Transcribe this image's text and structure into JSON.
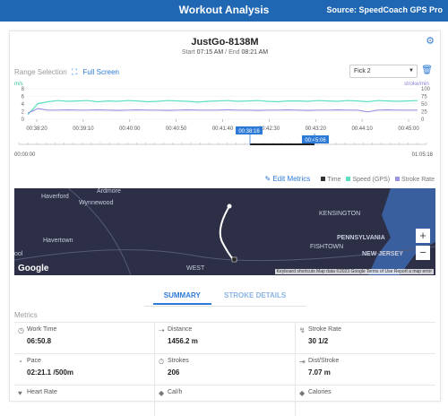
{
  "header": {
    "title": "Workout Analysis",
    "source": "Source: SpeedCoach GPS Pro"
  },
  "session": {
    "name": "JustGo-8138M",
    "start_label": "Start",
    "start_time": "07:15 AM",
    "end_label": "End",
    "end_time": "08:21 AM"
  },
  "range": {
    "label": "Range Selection",
    "fullscreen": "Full Screen",
    "select_value": "Fick 2",
    "range_start": "00:38:16",
    "range_end": "00:45:06",
    "timeline_start": "00:00:00",
    "timeline_end": "01:05:18"
  },
  "chart_data": {
    "type": "line",
    "left_axis_label": "m/s",
    "right_axis_label": "stroke/min",
    "left_ticks": [
      "0",
      "2",
      "4",
      "6",
      "8"
    ],
    "right_ticks": [
      "0",
      "25",
      "50",
      "75",
      "100"
    ],
    "x_ticks": [
      "00:38:20",
      "00:39:10",
      "00:40:00",
      "00:40:50",
      "00:41:40",
      "00:42:30",
      "00:43:20",
      "00:44:10",
      "00:45:00"
    ],
    "left_range": [
      0,
      8
    ],
    "right_range": [
      0,
      100
    ],
    "series": [
      {
        "name": "Speed (GPS)",
        "axis": "left",
        "color": "#5de0c0",
        "values": [
          1.2,
          4.1,
          4.6,
          4.9,
          4.7,
          4.8,
          4.9,
          4.6,
          4.8,
          4.7,
          4.9,
          4.8,
          4.6,
          4.7,
          4.9,
          4.8,
          4.7,
          4.5,
          4.7,
          4.8,
          4.9,
          4.7,
          4.8,
          4.9,
          4.7,
          4.6,
          4.8,
          4.8,
          4.7,
          4.9,
          4.8,
          4.7,
          4.9,
          4.8,
          4.6,
          4.9,
          4.8,
          4.7,
          4.8,
          4.9
        ]
      },
      {
        "name": "Stroke Rate",
        "axis": "right",
        "color": "#9b95e0",
        "values": [
          20,
          35,
          30,
          30,
          31,
          30,
          30,
          31,
          30,
          29,
          30,
          31,
          30,
          30,
          29,
          30,
          31,
          30,
          30,
          30,
          31,
          30,
          30,
          29,
          30,
          30,
          31,
          30,
          29,
          30,
          30,
          31,
          30,
          30,
          24,
          30,
          31,
          30,
          30,
          30
        ]
      }
    ]
  },
  "legend": {
    "edit": "Edit Metrics",
    "items": [
      {
        "label": "Time",
        "color": "#333333"
      },
      {
        "label": "Speed (GPS)",
        "color": "#5de0c0"
      },
      {
        "label": "Stroke Rate",
        "color": "#9b95e0"
      }
    ]
  },
  "map": {
    "labels": [
      "Haverford",
      "Ardmore",
      "Wynnewood",
      "Havertown",
      "KENSINGTON",
      "FISHTOWN",
      "PENNSYLVANIA",
      "NEW JERSEY",
      "WEST",
      "ool"
    ],
    "attribution": "Keyboard shortcuts   Map data ©2023 Google   Terms of Use   Report a map error",
    "google": "Google",
    "zoom_in": "+",
    "zoom_out": "−"
  },
  "tabs": [
    "SUMMARY",
    "STROKE DETAILS"
  ],
  "metrics_title": "Metrics",
  "metrics": [
    [
      {
        "icon": "clock-icon",
        "glyph": "◷",
        "label": "Work Time",
        "value": "06:50.8"
      },
      {
        "icon": "distance-icon",
        "glyph": "⇢",
        "label": "Distance",
        "value": "1456.2 m"
      },
      {
        "icon": "stroke-rate-icon",
        "glyph": "↯",
        "label": "Stroke Rate",
        "value": "30 1/2"
      }
    ],
    [
      {
        "icon": "pace-icon",
        "glyph": "◔",
        "label": "Pace",
        "value": "02:21.1 /500m"
      },
      {
        "icon": "strokes-icon",
        "glyph": "⏱",
        "label": "Strokes",
        "value": "206"
      },
      {
        "icon": "dist-stroke-icon",
        "glyph": "⇥",
        "label": "Dist/Stroke",
        "value": "7.07 m"
      }
    ],
    [
      {
        "icon": "heart-icon",
        "glyph": "♥",
        "label": "Heart Rate",
        "value": ""
      },
      {
        "icon": "cal-icon",
        "glyph": "◆",
        "label": "Cal/h",
        "value": ""
      },
      {
        "icon": "calories-icon",
        "glyph": "◆",
        "label": "Calories",
        "value": ""
      }
    ]
  ]
}
